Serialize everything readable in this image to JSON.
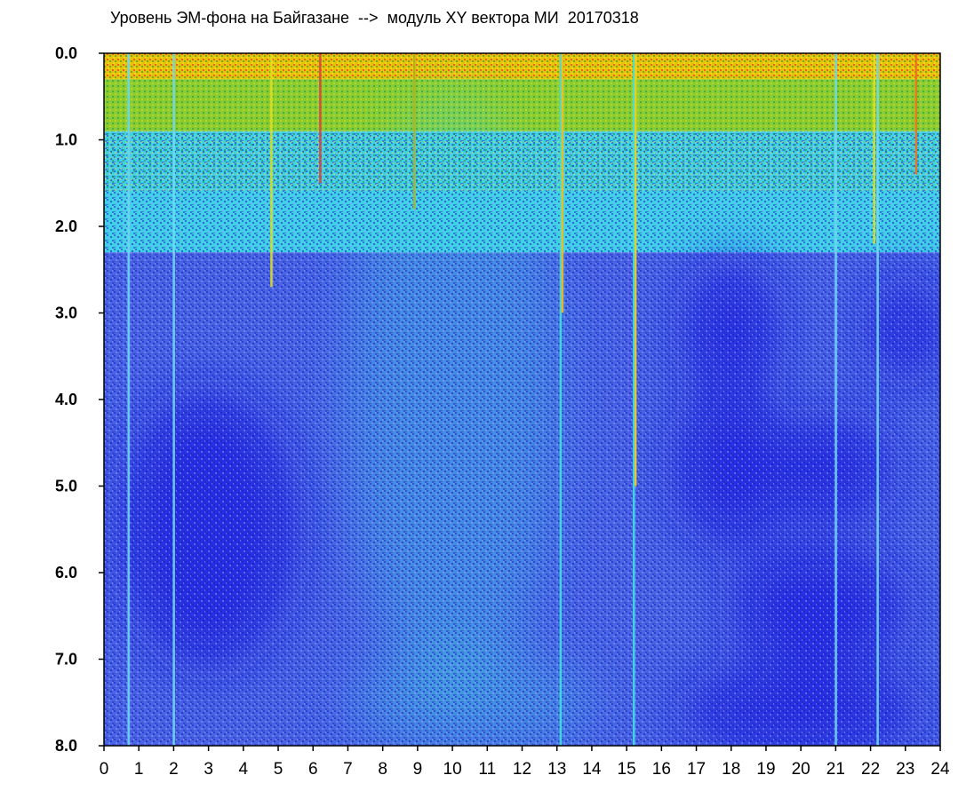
{
  "chart_data": {
    "type": "heatmap",
    "title": "Уровень ЭМ-фона на Байгазане  -->  модуль XY вектора МИ  20170318",
    "xlabel": "",
    "ylabel": "",
    "x_ticks": [
      "0",
      "1",
      "2",
      "3",
      "4",
      "5",
      "6",
      "7",
      "8",
      "9",
      "10",
      "11",
      "12",
      "13",
      "14",
      "15",
      "16",
      "17",
      "18",
      "19",
      "20",
      "21",
      "22",
      "23",
      "24"
    ],
    "y_ticks": [
      "0.0",
      "1.0",
      "2.0",
      "3.0",
      "4.0",
      "5.0",
      "6.0",
      "7.0",
      "8.0"
    ],
    "xlim": [
      0,
      24
    ],
    "ylim": [
      0,
      8
    ],
    "y_inverted": true,
    "grid": false,
    "colorscale": [
      "#1a1ae0",
      "#5c7ce8",
      "#3fd6e0",
      "#17b322",
      "#f0f000",
      "#e01e1e"
    ],
    "bands": [
      {
        "label": "high intensity surface band",
        "y_from": 0.0,
        "y_to": 0.3,
        "color": "#e8c010"
      },
      {
        "label": "green transition band",
        "y_from": 0.3,
        "y_to": 0.9,
        "color": "#8ccc30"
      },
      {
        "label": "cyan band",
        "y_from": 0.9,
        "y_to": 2.3,
        "color": "#40d0e8"
      },
      {
        "label": "blue background",
        "y_from": 2.3,
        "y_to": 8.0,
        "color": "#4a64e4"
      }
    ],
    "dark_regions": [
      {
        "x_center": 3.0,
        "y_center": 5.5,
        "rx": 2.5,
        "ry": 1.6
      },
      {
        "x_center": 18.0,
        "y_center": 3.2,
        "rx": 1.3,
        "ry": 0.8
      },
      {
        "x_center": 18.0,
        "y_center": 4.8,
        "rx": 1.6,
        "ry": 0.9
      },
      {
        "x_center": 21.0,
        "y_center": 4.8,
        "rx": 1.6,
        "ry": 0.6
      },
      {
        "x_center": 23.0,
        "y_center": 3.2,
        "rx": 1.0,
        "ry": 0.6
      },
      {
        "x_center": 20.5,
        "y_center": 6.4,
        "rx": 2.5,
        "ry": 0.7
      },
      {
        "x_center": 20.0,
        "y_center": 7.6,
        "rx": 3.5,
        "ry": 0.5
      }
    ],
    "light_regions": [
      {
        "x_center": 10.0,
        "y_center": 4.0,
        "rx": 3.0,
        "ry": 3.5
      },
      {
        "x_center": 10.5,
        "y_center": 7.5,
        "rx": 3.5,
        "ry": 0.6
      }
    ],
    "vertical_streaks": [
      {
        "x": 0.7,
        "y_to": 8.0,
        "color": "#6fd8f0"
      },
      {
        "x": 2.0,
        "y_to": 8.0,
        "color": "#6fd8f0"
      },
      {
        "x": 4.8,
        "y_to": 2.7,
        "color": "#e0e020"
      },
      {
        "x": 6.2,
        "y_to": 1.5,
        "color": "#e04040"
      },
      {
        "x": 8.9,
        "y_to": 1.8,
        "color": "#b0b020"
      },
      {
        "x": 13.1,
        "y_to": 8.0,
        "color": "#3fe0e0"
      },
      {
        "x": 13.15,
        "y_to": 3.0,
        "color": "#f0c020"
      },
      {
        "x": 15.2,
        "y_to": 8.0,
        "color": "#3fe0e0"
      },
      {
        "x": 15.25,
        "y_to": 5.0,
        "color": "#f0d020"
      },
      {
        "x": 21.0,
        "y_to": 8.0,
        "color": "#6fd8f0"
      },
      {
        "x": 22.1,
        "y_to": 2.2,
        "color": "#e0e020"
      },
      {
        "x": 22.2,
        "y_to": 8.0,
        "color": "#6fd8f0"
      },
      {
        "x": 23.3,
        "y_to": 1.4,
        "color": "#f07020"
      }
    ]
  }
}
